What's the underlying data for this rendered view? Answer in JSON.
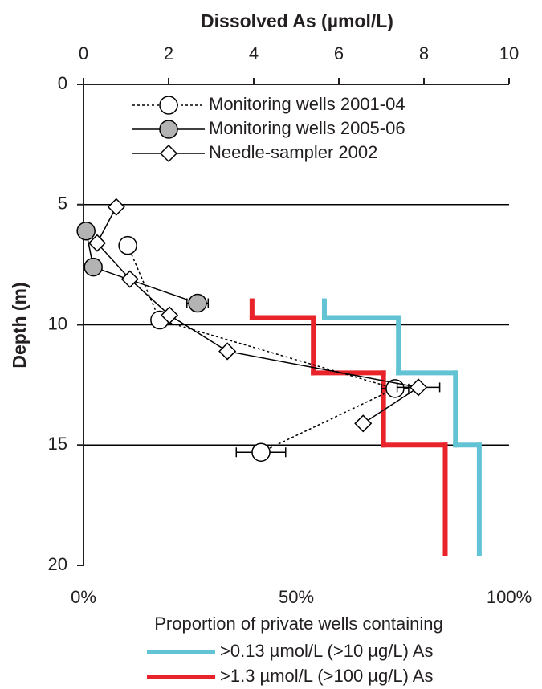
{
  "chart_data": {
    "type": "line",
    "xlabel": "Dissolved As (µmol/L)",
    "ylabel": "Depth (m)",
    "x2label": "Proportion of private wells containing",
    "xlim": [
      0,
      10
    ],
    "xticks": [
      0,
      2,
      4,
      6,
      8,
      10
    ],
    "x2lim": [
      0,
      100
    ],
    "x2ticks": [
      {
        "value": 0,
        "label": "0%"
      },
      {
        "value": 50,
        "label": "50%"
      },
      {
        "value": 100,
        "label": "100%"
      }
    ],
    "ylim": [
      0,
      20
    ],
    "yticks": [
      0,
      5,
      10,
      15,
      20
    ],
    "y_inverted": true,
    "grid": true,
    "series": [
      {
        "name": "Monitoring wells 2001-04",
        "color": "#000000",
        "line": "dotted",
        "marker": "circle",
        "marker_fill": "#ffffff",
        "x": [
          1.04,
          1.79,
          7.32,
          4.17
        ],
        "y": [
          6.7,
          9.8,
          12.65,
          15.3
        ],
        "xerr": [
          null,
          null,
          0.32,
          0.58
        ]
      },
      {
        "name": "Monitoring wells 2005-06",
        "color": "#000000",
        "line": "solid",
        "marker": "circle",
        "marker_fill": "#b3b3b3",
        "x": [
          0.06,
          0.23,
          2.68
        ],
        "y": [
          6.1,
          7.6,
          9.1
        ],
        "xerr": [
          null,
          null,
          0.25
        ]
      },
      {
        "name": "Needle-sampler 2002",
        "color": "#000000",
        "line": "solid",
        "marker": "diamond",
        "marker_fill": "#ffffff",
        "x": [
          0.77,
          0.32,
          1.09,
          2.02,
          3.38,
          7.87,
          6.57
        ],
        "y": [
          5.1,
          6.6,
          8.1,
          9.6,
          11.1,
          12.6,
          14.1
        ],
        "xerr": [
          null,
          null,
          null,
          null,
          null,
          0.5,
          null
        ]
      },
      {
        "name": ">0.13 µmol/L (>10 µg/L) As",
        "color": "#62c3d4",
        "axis": "x2",
        "type": "step",
        "bins": [
          9,
          9.7,
          12,
          15,
          19.5
        ],
        "values": [
          56.6,
          74,
          87.4,
          93
        ]
      },
      {
        "name": ">1.3 µmol/L (>100 µg/L) As",
        "color": "#e8232a",
        "axis": "x2",
        "type": "step",
        "bins": [
          9,
          9.7,
          12,
          15,
          19.5
        ],
        "values": [
          39.6,
          54,
          70.5,
          85
        ]
      }
    ]
  }
}
